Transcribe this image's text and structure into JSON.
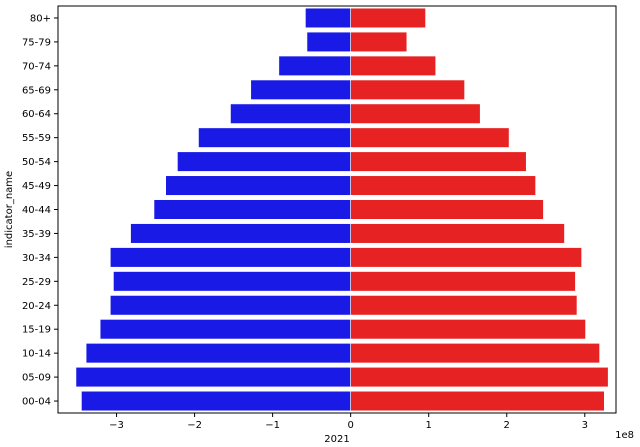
{
  "chart_data": {
    "type": "bar",
    "orientation": "horizontal",
    "xlabel": "2021",
    "ylabel": "indicator_name",
    "offset_text": "1e8",
    "xlim": [
      -3.75,
      3.4
    ],
    "x_scale_multiplier": 100000000,
    "x_ticks": [
      -3,
      -2,
      -1,
      0,
      1,
      2,
      3
    ],
    "x_tick_labels": [
      "−3",
      "−2",
      "−1",
      "0",
      "1",
      "2",
      "3"
    ],
    "grid": false,
    "legend": "none",
    "categories": [
      "80+",
      "75-79",
      "70-74",
      "65-69",
      "60-64",
      "55-59",
      "50-54",
      "45-49",
      "40-44",
      "35-39",
      "30-34",
      "25-29",
      "20-24",
      "15-19",
      "10-14",
      "05-09",
      "00-04"
    ],
    "series": [
      {
        "color": "#1a1ae6",
        "values": [
          -0.58,
          -0.56,
          -0.92,
          -1.28,
          -1.54,
          -1.95,
          -2.22,
          -2.37,
          -2.52,
          -2.82,
          -3.08,
          -3.04,
          -3.08,
          -3.21,
          -3.39,
          -3.52,
          -3.45
        ]
      },
      {
        "color": "#e62222",
        "values": [
          0.96,
          0.72,
          1.09,
          1.46,
          1.66,
          2.03,
          2.25,
          2.37,
          2.47,
          2.74,
          2.96,
          2.88,
          2.9,
          3.01,
          3.19,
          3.3,
          3.25
        ]
      }
    ]
  }
}
